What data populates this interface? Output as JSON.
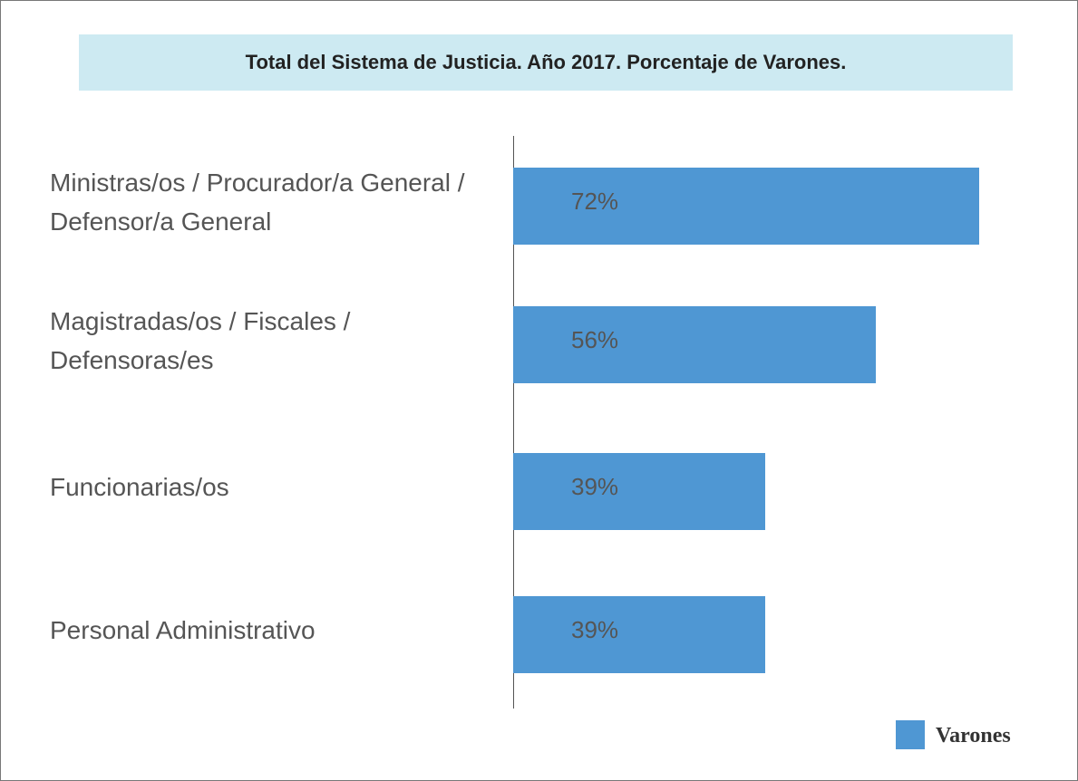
{
  "chart_data": {
    "type": "bar",
    "orientation": "horizontal",
    "title": "Total del Sistema de Justicia. Año 2017. Porcentaje de Varones.",
    "categories": [
      "Ministras/os / Procurador/a General / Defensor/a General",
      "Magistradas/os / Fiscales / Defensoras/es",
      "Funcionarias/os",
      "Personal Administrativo"
    ],
    "series": [
      {
        "name": "Varones",
        "color": "#4f97d3",
        "values": [
          72,
          56,
          39,
          39
        ],
        "value_labels": [
          "72%",
          "56%",
          "39%",
          "39%"
        ]
      }
    ],
    "legend": "bottom-right"
  }
}
